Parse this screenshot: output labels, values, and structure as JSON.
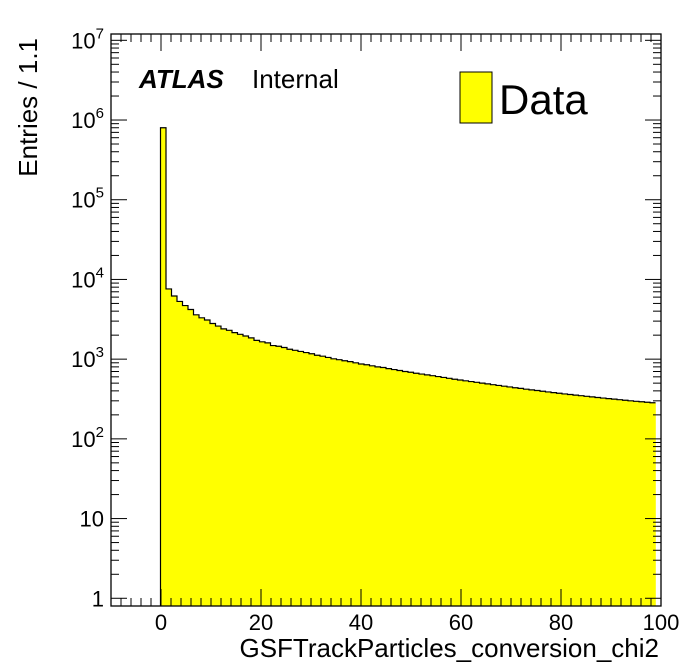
{
  "chart_data": {
    "type": "bar",
    "title": "",
    "xlabel": "GSFTrackParticles_conversion_chi2",
    "ylabel": "Entries / 1.1",
    "xlim": [
      -10,
      100
    ],
    "ylim": [
      0.8,
      12000000
    ],
    "y_scale": "log",
    "bin_width": 1.1,
    "x_ticks": [
      {
        "value": 0,
        "label": "0"
      },
      {
        "value": 20,
        "label": "20"
      },
      {
        "value": 40,
        "label": "40"
      },
      {
        "value": 60,
        "label": "60"
      },
      {
        "value": 80,
        "label": "80"
      },
      {
        "value": 100,
        "label": "100"
      }
    ],
    "y_ticks": [
      {
        "value": 1,
        "base": "1",
        "exp": ""
      },
      {
        "value": 10,
        "base": "10",
        "exp": ""
      },
      {
        "value": 100,
        "base": "10",
        "exp": "2"
      },
      {
        "value": 1000,
        "base": "10",
        "exp": "3"
      },
      {
        "value": 10000,
        "base": "10",
        "exp": "4"
      },
      {
        "value": 100000,
        "base": "10",
        "exp": "5"
      },
      {
        "value": 1000000,
        "base": "10",
        "exp": "6"
      },
      {
        "value": 10000000,
        "base": "10",
        "exp": "7"
      }
    ],
    "fill_color": "#ffff00",
    "line_color": "#000000",
    "legend": {
      "position": "top-right",
      "entries": [
        "Data"
      ]
    },
    "label": {
      "experiment": "ATLAS",
      "status": "Internal"
    },
    "series": [
      {
        "name": "Data",
        "x_start": -0.1,
        "values": [
          800000,
          7600,
          6200,
          5300,
          4700,
          4200,
          3600,
          3300,
          3100,
          2800,
          2600,
          2400,
          2300,
          2150,
          2050,
          1950,
          1850,
          1720,
          1650,
          1600,
          1480,
          1450,
          1400,
          1330,
          1290,
          1250,
          1210,
          1170,
          1120,
          1090,
          1050,
          1010,
          985,
          955,
          930,
          900,
          870,
          850,
          825,
          800,
          785,
          760,
          740,
          720,
          700,
          685,
          665,
          650,
          635,
          620,
          605,
          590,
          575,
          560,
          548,
          535,
          523,
          512,
          500,
          490,
          478,
          468,
          458,
          448,
          438,
          430,
          420,
          412,
          404,
          396,
          388,
          380,
          373,
          366,
          360,
          354,
          348,
          342,
          336,
          330,
          325,
          320,
          315,
          310,
          305,
          300,
          296,
          292,
          288,
          284
        ]
      }
    ]
  }
}
